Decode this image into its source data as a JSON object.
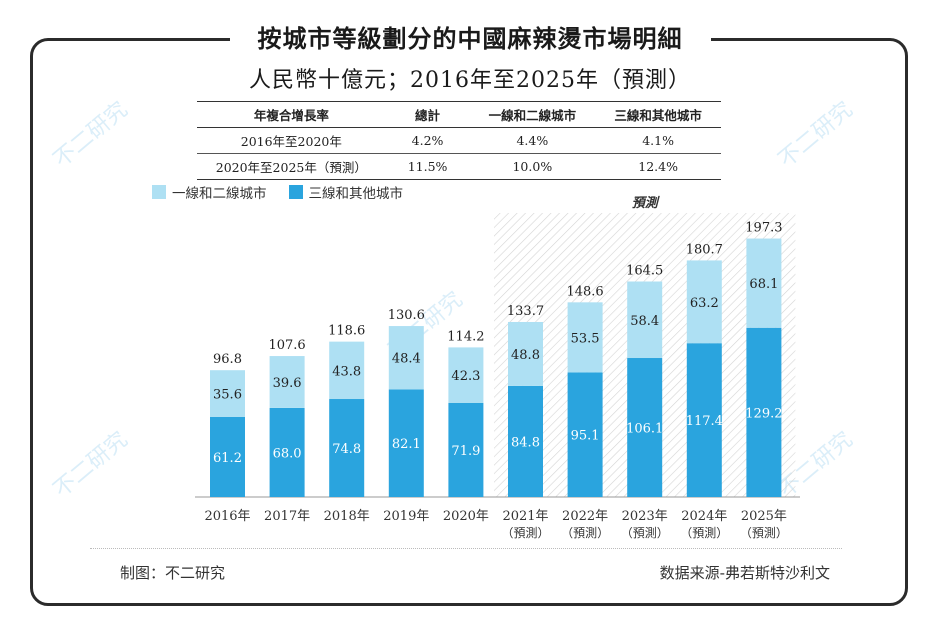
{
  "title": "按城市等級劃分的中國麻辣燙市場明細",
  "subtitle": "人民幣十億元；2016年至2025年（預測）",
  "cagr_table": {
    "headers": [
      "年複合增長率",
      "總計",
      "一線和二線城市",
      "三線和其他城市"
    ],
    "rows": [
      [
        "2016年至2020年",
        "4.2%",
        "4.4%",
        "4.1%"
      ],
      [
        "2020年至2025年（預測）",
        "11.5%",
        "10.0%",
        "12.4%"
      ]
    ]
  },
  "forecast_label": "預測",
  "forecast_suffix": "（預測）",
  "footer": {
    "left": "制图：不二研究",
    "right": "数据来源-弗若斯特沙利文"
  },
  "watermark": "不二研究",
  "colors": {
    "tier12": "#aee0f3",
    "tier3": "#2aa4de",
    "hatch": "#cfcfcf"
  },
  "chart_data": {
    "type": "bar",
    "stacked": true,
    "categories": [
      "2016年",
      "2017年",
      "2018年",
      "2019年",
      "2020年",
      "2021年",
      "2022年",
      "2023年",
      "2024年",
      "2025年"
    ],
    "series": [
      {
        "name": "三線和其他城市",
        "values": [
          61.2,
          68.0,
          74.8,
          82.1,
          71.9,
          84.8,
          95.1,
          106.1,
          117.4,
          129.2
        ]
      },
      {
        "name": "一線和二線城市",
        "values": [
          35.6,
          39.6,
          43.8,
          48.4,
          42.3,
          48.8,
          53.5,
          58.4,
          63.2,
          68.1
        ]
      }
    ],
    "totals": [
      96.8,
      107.6,
      118.6,
      130.6,
      114.2,
      133.7,
      148.6,
      164.5,
      180.7,
      197.3
    ],
    "forecast_start_index": 5,
    "legend": [
      "一線和二線城市",
      "三線和其他城市"
    ],
    "legend_position": "top-left"
  }
}
